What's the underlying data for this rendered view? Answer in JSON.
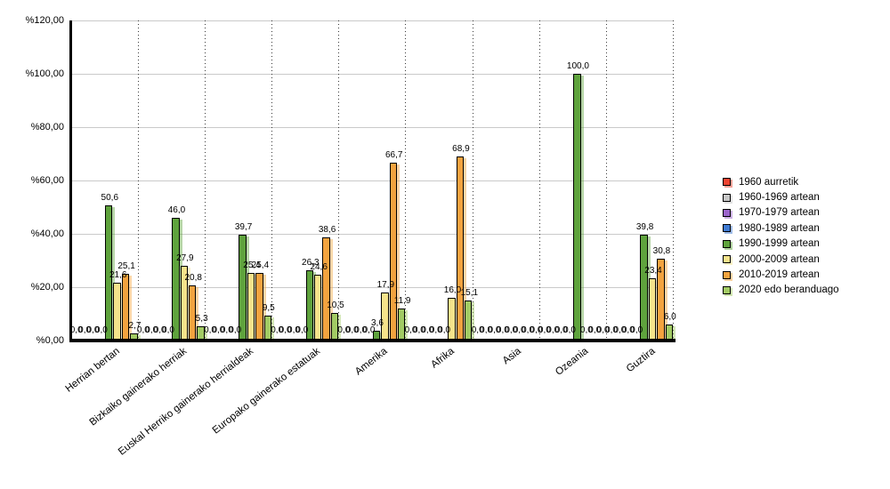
{
  "chart_data": {
    "type": "bar",
    "title": "",
    "categories": [
      "Herrian bertan",
      "Bizkaiko gainerako herriak",
      "Euskal Herriko gainerako herrialdeak",
      "Europako gainerako estatuak",
      "Amerika",
      "Afrika",
      "Asia",
      "Ozeania",
      "Guztira"
    ],
    "series": [
      {
        "name": "1960 aurretik",
        "color": "#ee4330",
        "values": [
          0,
          0,
          0,
          0,
          0,
          0,
          0,
          0,
          0
        ]
      },
      {
        "name": "1960-1969 artean",
        "color": "#c6c6c6",
        "values": [
          0,
          0,
          0,
          0,
          0,
          0,
          0,
          0,
          0
        ]
      },
      {
        "name": "1970-1979 artean",
        "color": "#9b64cb",
        "values": [
          0,
          0,
          0,
          0,
          0,
          0,
          0,
          0,
          0
        ]
      },
      {
        "name": "1980-1989 artean",
        "color": "#3f7ad2",
        "values": [
          0,
          0,
          0,
          0,
          0,
          0,
          0,
          0,
          0
        ]
      },
      {
        "name": "1990-1999 artean",
        "color": "#5fa33d",
        "values": [
          50.6,
          46.0,
          39.7,
          26.3,
          3.6,
          0,
          0,
          100.0,
          39.8
        ]
      },
      {
        "name": "2000-2009 artean",
        "color": "#f5e38b",
        "values": [
          21.6,
          27.9,
          25.4,
          24.6,
          17.9,
          16.0,
          0,
          0,
          23.4
        ]
      },
      {
        "name": "2010-2019 artean",
        "color": "#f3a33f",
        "values": [
          25.1,
          20.8,
          25.4,
          38.6,
          66.7,
          68.9,
          0,
          0,
          30.8
        ]
      },
      {
        "name": "2020 edo beranduago",
        "color": "#a2cb64",
        "values": [
          2.7,
          5.3,
          9.5,
          10.5,
          11.9,
          15.1,
          0,
          0,
          6.0
        ]
      }
    ],
    "y_axis": {
      "min": 0,
      "max": 120,
      "step": 20,
      "tick_labels": [
        "%0,00",
        "%20,00",
        "%40,00",
        "%60,00",
        "%80,00",
        "%100,00",
        "%120,00"
      ]
    },
    "value_label_decimal_separator": ",",
    "legend_position": "right",
    "grid": {
      "horizontal": "solid-gray",
      "vertical": "dotted-category-separators"
    },
    "colors": {
      "gridline": "#cacaca",
      "separator": "#3a3a3a",
      "axis": "#000000",
      "text": "#000000"
    }
  }
}
